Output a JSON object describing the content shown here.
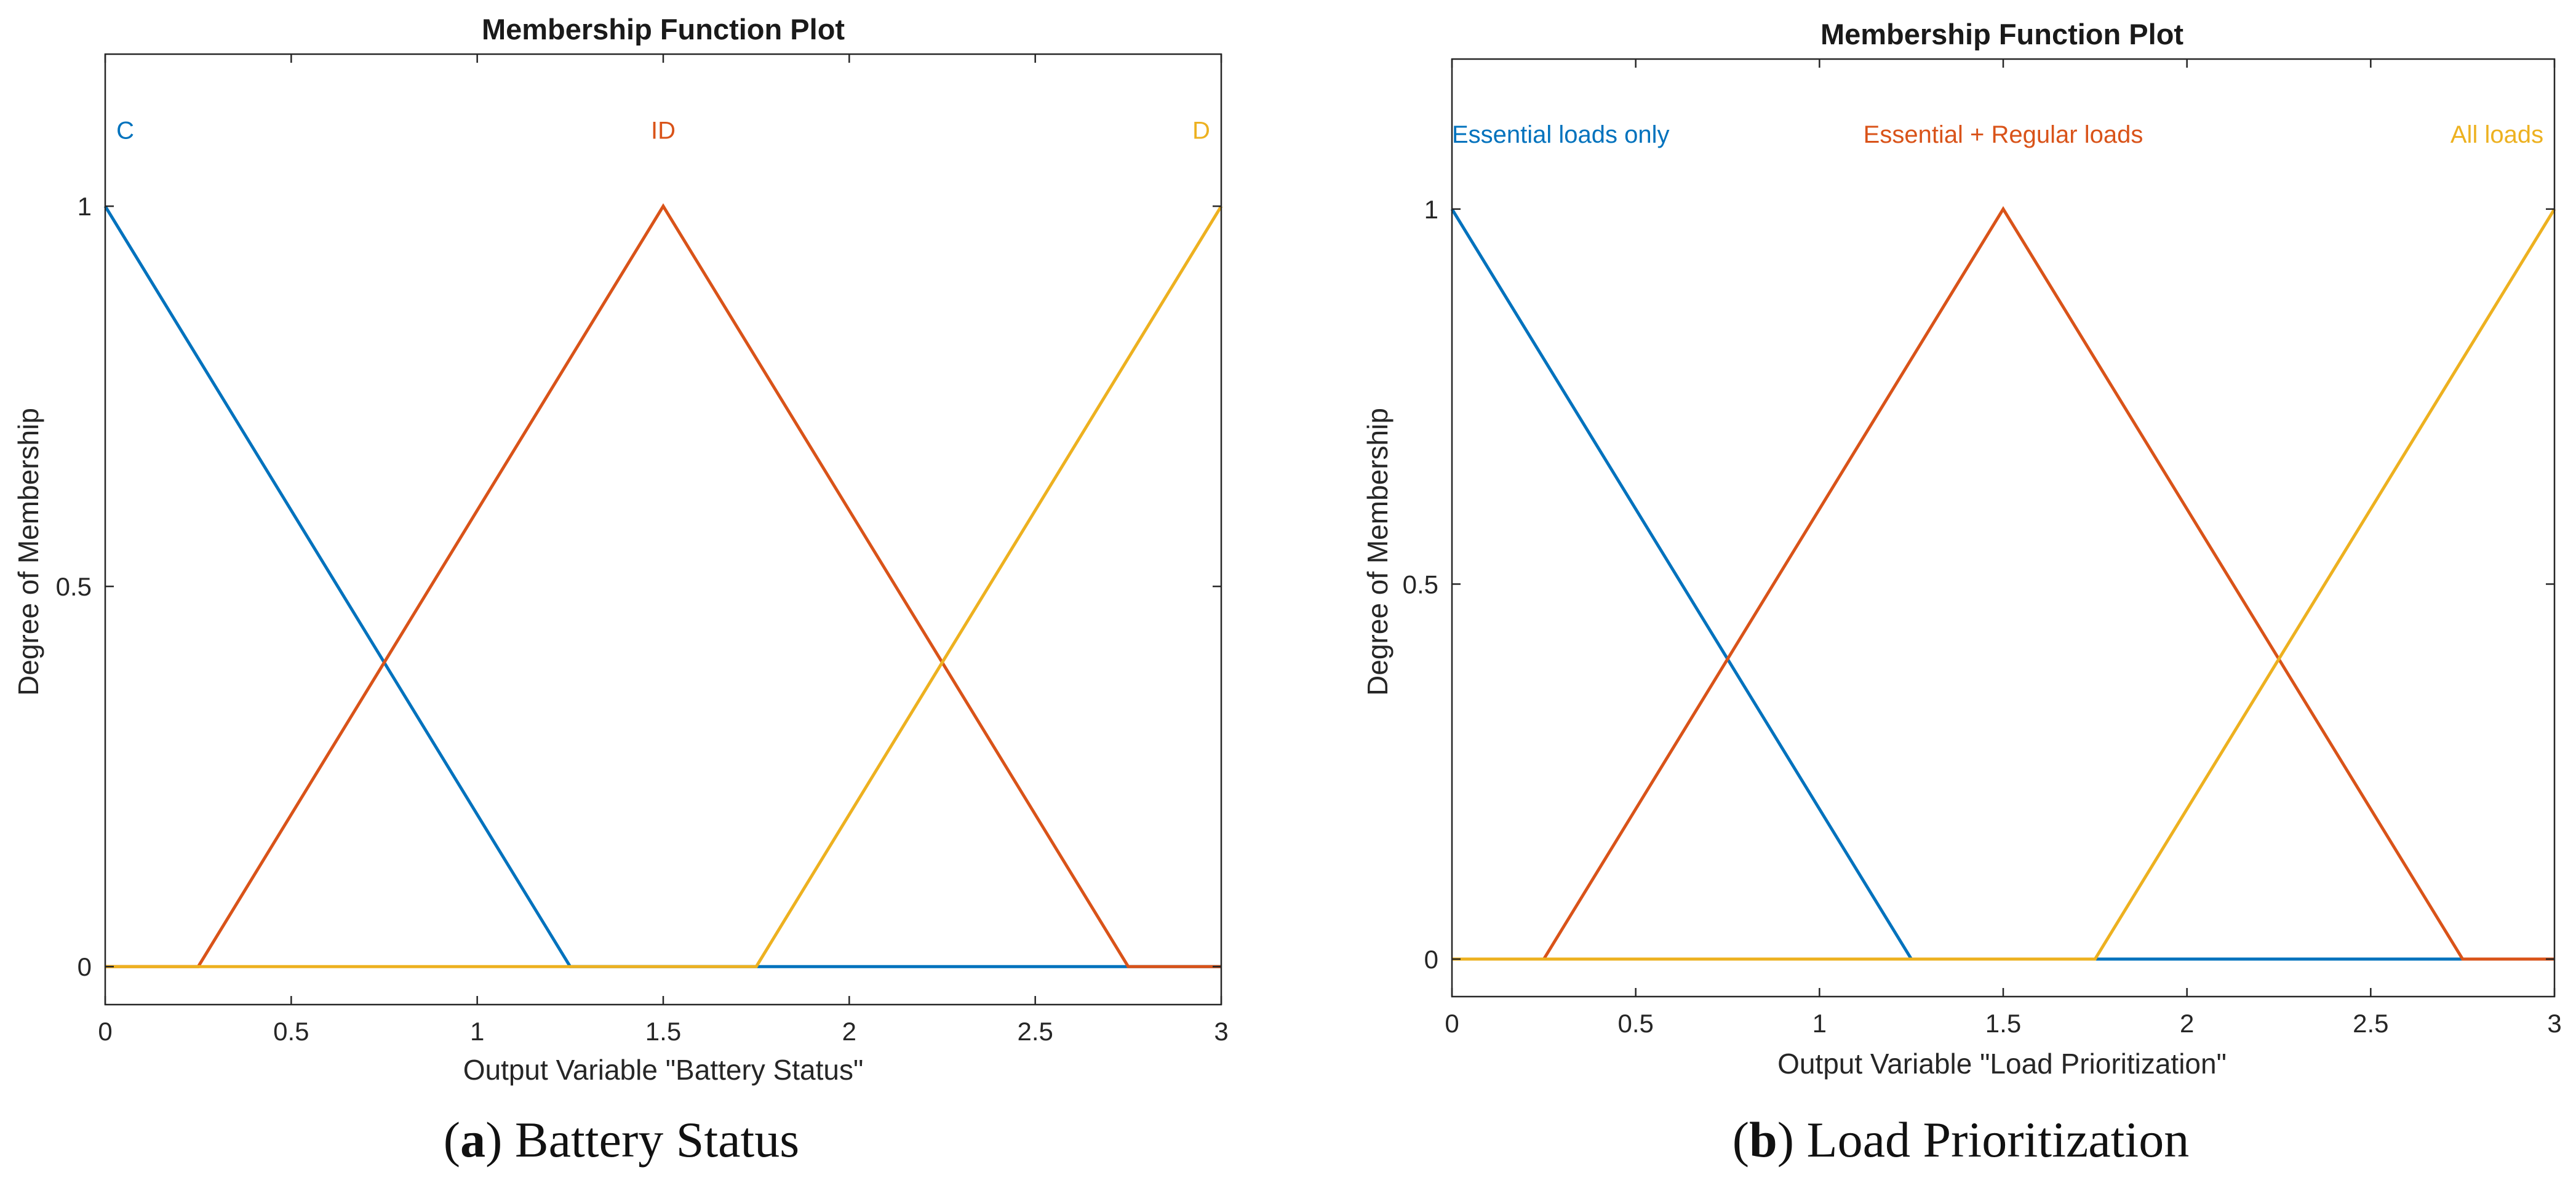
{
  "figure": {
    "panels": [
      {
        "caption_letter": "a",
        "caption_text": "Battery Status",
        "chart_data": {
          "type": "line",
          "title": "Membership Function Plot",
          "xlabel": "Output Variable \"Battery Status\"",
          "ylabel": "Degree of Membership",
          "xlim": [
            0,
            3
          ],
          "ylim": [
            -0.05,
            1.2
          ],
          "xticks": [
            0,
            0.5,
            1,
            1.5,
            2,
            2.5,
            3
          ],
          "xtick_labels": [
            "0",
            "0.5",
            "1",
            "1.5",
            "2",
            "2.5",
            "3"
          ],
          "yticks": [
            0,
            0.5,
            1
          ],
          "ytick_labels": [
            "0",
            "0.5",
            "1"
          ],
          "label_y": 1.1,
          "series": [
            {
              "name": "C",
              "color": "#0072BD",
              "x": [
                0,
                0,
                1.25,
                3
              ],
              "y": [
                1,
                1,
                0,
                0
              ],
              "label_anchor": "start",
              "label_x": 0.03
            },
            {
              "name": "ID",
              "color": "#D95319",
              "x": [
                0,
                0.25,
                1.5,
                2.75,
                3
              ],
              "y": [
                0,
                0,
                1,
                0,
                0
              ],
              "label_anchor": "middle",
              "label_x": 1.5
            },
            {
              "name": "D",
              "color": "#EDB120",
              "x": [
                0,
                1.75,
                3
              ],
              "y": [
                0,
                0,
                1
              ],
              "label_anchor": "end",
              "label_x": 2.97
            }
          ]
        }
      },
      {
        "caption_letter": "b",
        "caption_text": "Load Prioritization",
        "chart_data": {
          "type": "line",
          "title": "Membership Function Plot",
          "xlabel": "Output Variable \"Load Prioritization\"",
          "ylabel": "Degree of Membership",
          "xlim": [
            0,
            3
          ],
          "ylim": [
            -0.05,
            1.2
          ],
          "xticks": [
            0,
            0.5,
            1,
            1.5,
            2,
            2.5,
            3
          ],
          "xtick_labels": [
            "0",
            "0.5",
            "1",
            "1.5",
            "2",
            "2.5",
            "3"
          ],
          "yticks": [
            0,
            0.5,
            1
          ],
          "ytick_labels": [
            "0",
            "0.5",
            "1"
          ],
          "label_y": 1.1,
          "series": [
            {
              "name": "Essential loads only",
              "color": "#0072BD",
              "x": [
                0,
                0,
                1.25,
                3
              ],
              "y": [
                1,
                1,
                0,
                0
              ],
              "label_anchor": "start",
              "label_x": 0.0
            },
            {
              "name": "Essential + Regular loads",
              "color": "#D95319",
              "x": [
                0,
                0.25,
                1.5,
                2.75,
                3
              ],
              "y": [
                0,
                0,
                1,
                0,
                0
              ],
              "label_anchor": "middle",
              "label_x": 1.5
            },
            {
              "name": "All loads",
              "color": "#EDB120",
              "x": [
                0,
                1.75,
                3
              ],
              "y": [
                0,
                0,
                1
              ],
              "label_anchor": "end",
              "label_x": 2.97
            }
          ]
        }
      }
    ]
  }
}
